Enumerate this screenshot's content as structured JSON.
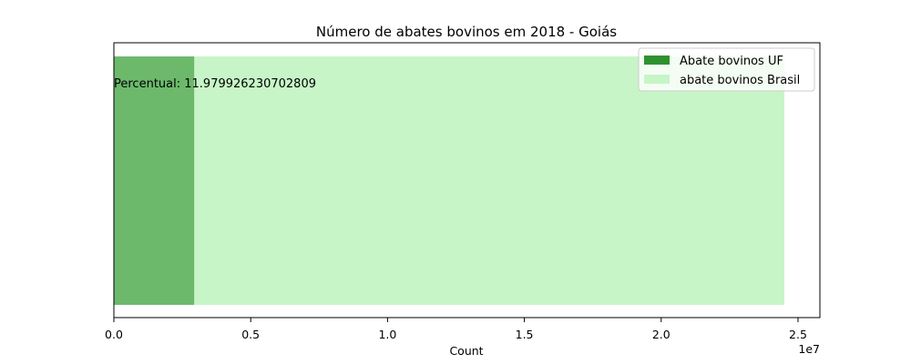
{
  "chart_data": {
    "type": "bar",
    "orientation": "horizontal",
    "stacked": false,
    "title": "Número de abates bovinos em 2018 - Goiás",
    "xlabel": "Count",
    "ylabel": "",
    "xlim": [
      0,
      25800000
    ],
    "x_ticks": [
      0,
      5000000,
      10000000,
      15000000,
      20000000,
      25000000
    ],
    "x_tick_labels": [
      "0.0",
      "0.5",
      "1.0",
      "1.5",
      "2.0",
      "2.5"
    ],
    "x_offset_label": "1e7",
    "grid": false,
    "legend_position": "top-right",
    "series": [
      {
        "name": "abate bovinos Brasil",
        "values": [
          24500000
        ],
        "color": "#c7f5c7"
      },
      {
        "name": "Abate bovinos UF",
        "values": [
          2935000
        ],
        "color": "#2e912e",
        "alpha": 0.6
      }
    ],
    "legend": [
      {
        "label": "Abate bovinos UF",
        "color": "#2e912e"
      },
      {
        "label": "abate bovinos Brasil",
        "color": "#c7f5c7"
      }
    ],
    "annotations": [
      {
        "text": "Percentual: 11.979926230702809"
      }
    ]
  }
}
